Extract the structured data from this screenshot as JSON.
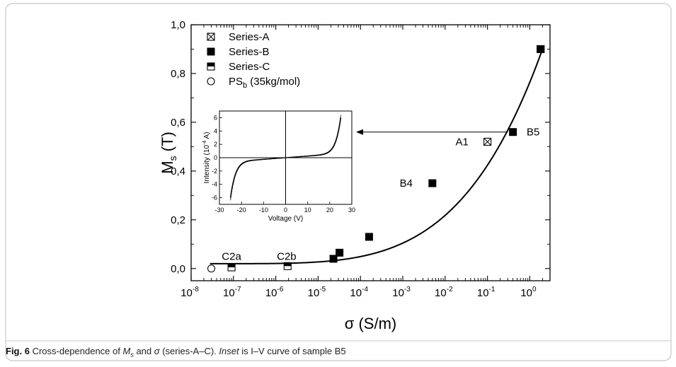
{
  "figure": {
    "caption": {
      "label": "Fig. 6",
      "text_1": " Cross-dependence of ",
      "var_1": "M",
      "var_1_sub": "s",
      "text_2": " and ",
      "var_2": "σ",
      "text_3": " (series-A–C). ",
      "inset_word": "Inset",
      "text_4": " is I–V curve of sample B5"
    }
  },
  "chart_data": [
    {
      "type": "scatter",
      "xscale": "log",
      "xlabel": "σ (S/m)",
      "ylabel_main": "M",
      "ylabel_sub": "s",
      "ylabel_unit": " (T)",
      "xlim": [
        1e-08,
        3
      ],
      "ylim": [
        -0.05,
        1.0
      ],
      "x_ticks": [
        -8,
        -7,
        -6,
        -5,
        -4,
        -3,
        -2,
        -1,
        0
      ],
      "y_ticks": [
        "0,0",
        "0,2",
        "0,4",
        "0,6",
        "0,8",
        "1,0"
      ],
      "y_tick_values": [
        0.0,
        0.2,
        0.4,
        0.6,
        0.8,
        1.0
      ],
      "legend_position": "top-left",
      "legend": [
        {
          "name": "Series-A",
          "marker": "crossed-square"
        },
        {
          "name": "Series-B",
          "marker": "filled-square"
        },
        {
          "name": "Series-C",
          "marker": "half-filled-square"
        },
        {
          "name": "PS",
          "sub": "b",
          "suffix": " (35kg/mol)",
          "marker": "open-circle"
        }
      ],
      "series": [
        {
          "name": "Series-A",
          "marker": "crossed-square",
          "points": [
            {
              "x": 0.1,
              "y": 0.52
            },
            {
              "x": 1.8,
              "y": 0.9
            }
          ]
        },
        {
          "name": "Series-B",
          "marker": "filled-square",
          "points": [
            {
              "x": 2.3e-05,
              "y": 0.04
            },
            {
              "x": 3.2e-05,
              "y": 0.065
            },
            {
              "x": 0.00016,
              "y": 0.13
            },
            {
              "x": 0.005,
              "y": 0.35
            },
            {
              "x": 0.4,
              "y": 0.56
            },
            {
              "x": 1.8,
              "y": 0.9
            }
          ]
        },
        {
          "name": "Series-C",
          "marker": "half-filled-square",
          "points": [
            {
              "x": 9e-08,
              "y": 0.005
            },
            {
              "x": 1.9e-06,
              "y": 0.01
            }
          ]
        },
        {
          "name": "PS",
          "marker": "open-circle",
          "points": [
            {
              "x": 3e-08,
              "y": 0.0
            }
          ]
        }
      ],
      "fit_curve": {
        "x_min": 2.8e-08,
        "x_max": 2.0,
        "equation": "y = 0.02 + 0.88 * ((log10(x)+7.55)/7.85)^4.3"
      },
      "annotations": [
        {
          "text": "C2a",
          "x": 9e-08,
          "y": 0.05
        },
        {
          "text": "C2b",
          "x": 1.8e-06,
          "y": 0.05
        },
        {
          "text": "B4",
          "x": 0.0012,
          "y": 0.35
        },
        {
          "text": "A1",
          "x": 0.025,
          "y": 0.52
        },
        {
          "text": "B5",
          "x": 1.2,
          "y": 0.56
        }
      ],
      "arrow": {
        "from_x": 0.4,
        "y": 0.56,
        "to": "inset"
      }
    },
    {
      "type": "line",
      "role": "inset",
      "xlabel": "Voltage (V)",
      "ylabel": "Intensity (10",
      "ylabel_exp": "-4",
      "ylabel_unit": " A)",
      "xlim": [
        -30,
        30
      ],
      "ylim": [
        -7,
        7
      ],
      "x_ticks": [
        -30,
        -20,
        -10,
        0,
        10,
        20,
        30
      ],
      "y_ticks": [
        -6,
        -4,
        -2,
        0,
        2,
        4,
        6
      ],
      "series": [
        {
          "name": "",
          "x_range": [
            -25,
            25
          ],
          "equation": "I = 0.024*V + 5.4*(V/25)^11"
        }
      ]
    }
  ]
}
